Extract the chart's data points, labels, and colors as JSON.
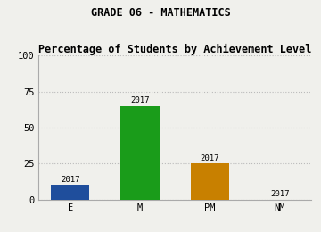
{
  "title1": "GRADE 06 - MATHEMATICS",
  "title2": "Percentage of Students by Achievement Level",
  "categories": [
    "E",
    "M",
    "PM",
    "NM"
  ],
  "values": [
    10,
    65,
    25,
    0
  ],
  "bar_colors": [
    "#1f4e9c",
    "#1a9c1a",
    "#c88000",
    "#888888"
  ],
  "bar_labels": [
    "2017",
    "2017",
    "2017",
    "2017"
  ],
  "ylim": [
    0,
    100
  ],
  "yticks": [
    0,
    25,
    50,
    75,
    100
  ],
  "grid_color": "#bbbbbb",
  "bg_color": "#f0f0ec",
  "title_fontsize": 8.5,
  "subtitle_fontsize": 8.5,
  "tick_fontsize": 7.5,
  "bar_label_fontsize": 6.5
}
